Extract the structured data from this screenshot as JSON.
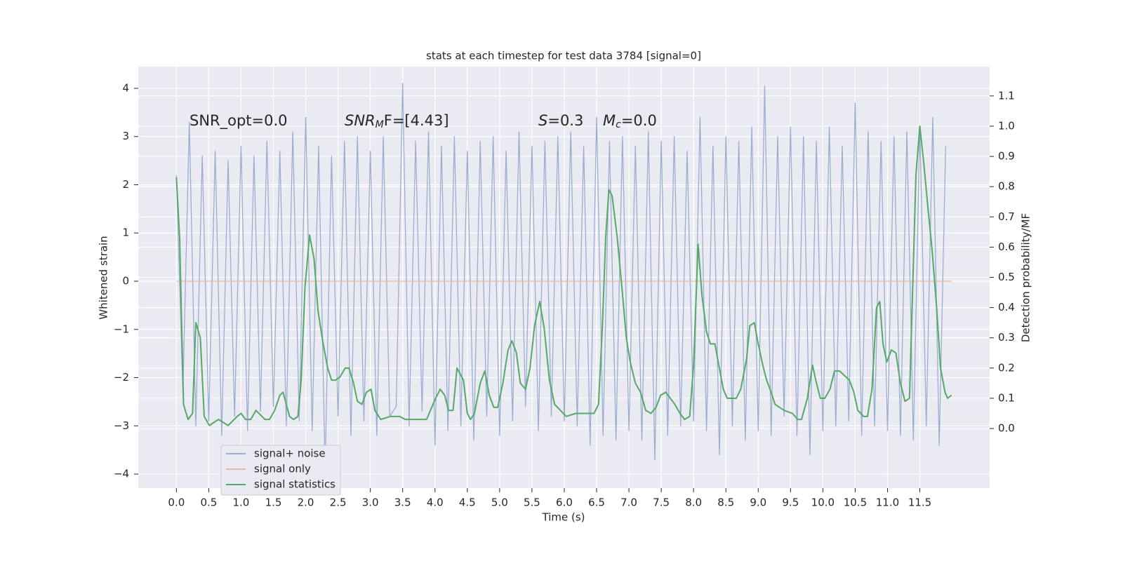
{
  "chart_data": {
    "type": "line",
    "title": "stats at each timestep for test data 3784 [signal=0]",
    "x_label": "Time (s)",
    "y_label": "Whitened strain",
    "y2_label": "Detection probability/MF",
    "annotations": [
      {
        "base": "SNR_opt=0.0"
      },
      {
        "base": "SNR",
        "sub": "M",
        "rest": "F=[4.43]"
      },
      {
        "base": "S",
        "rest": "=0.3"
      },
      {
        "base": "M",
        "sub": "c",
        "rest": "=0.0"
      }
    ],
    "grid": true,
    "background": "#eaeaf2",
    "legend": "lower left",
    "xlim": [
      -0.59,
      12.58
    ],
    "ylim": [
      -4.29,
      4.45
    ],
    "y2lim": [
      -0.197,
      1.197
    ],
    "xticks": [
      {
        "value": 0,
        "label": "0.0"
      },
      0.5,
      {
        "value": 1,
        "label": "1.0"
      },
      1.5,
      {
        "value": 2,
        "label": "2.0"
      },
      2.5,
      {
        "value": 3,
        "label": "3.0"
      },
      3.5,
      {
        "value": 4,
        "label": "4.0"
      },
      4.5,
      {
        "value": 5,
        "label": "5.0"
      },
      5.5,
      {
        "value": 6,
        "label": "6.0"
      },
      6.5,
      {
        "value": 7,
        "label": "7.0"
      },
      7.5,
      {
        "value": 8,
        "label": "8.0"
      },
      8.5,
      {
        "value": 9,
        "label": "9.0"
      },
      9.5,
      {
        "value": 10,
        "label": "10.0"
      },
      10.5,
      {
        "value": 11,
        "label": "11.0"
      },
      11.5
    ],
    "yticks": [
      {
        "value": -4,
        "label": "−4"
      },
      {
        "value": -3,
        "label": "−3"
      },
      {
        "value": -2,
        "label": "−2"
      },
      {
        "value": -1,
        "label": "−1"
      },
      0,
      1,
      2,
      3,
      4
    ],
    "y2ticks": [
      {
        "value": 0,
        "label": "0.0"
      },
      0.1,
      0.2,
      0.3,
      0.4,
      0.5,
      0.6,
      0.7,
      0.8,
      0.9,
      {
        "value": 1,
        "label": "1.0"
      },
      1.1
    ],
    "series": [
      {
        "name": "signal+ noise",
        "color": "#9badd2",
        "x": [
          0.0,
          0.1,
          0.2,
          0.3,
          0.4,
          0.5,
          0.6,
          0.7,
          0.8,
          0.9,
          1.0,
          1.1,
          1.2,
          1.3,
          1.4,
          1.5,
          1.6,
          1.7,
          1.8,
          1.9,
          2.0,
          2.1,
          2.2,
          2.3,
          2.4,
          2.5,
          2.6,
          2.7,
          2.8,
          2.9,
          3.0,
          3.1,
          3.2,
          3.3,
          3.4,
          3.5,
          3.6,
          3.7,
          3.8,
          3.9,
          4.0,
          4.1,
          4.2,
          4.3,
          4.4,
          4.5,
          4.6,
          4.7,
          4.8,
          4.9,
          5.0,
          5.1,
          5.2,
          5.3,
          5.4,
          5.5,
          5.6,
          5.7,
          5.8,
          5.9,
          6.0,
          6.1,
          6.2,
          6.3,
          6.4,
          6.5,
          6.6,
          6.7,
          6.8,
          6.9,
          7.0,
          7.1,
          7.2,
          7.3,
          7.4,
          7.5,
          7.6,
          7.7,
          7.8,
          7.9,
          8.0,
          8.1,
          8.2,
          8.3,
          8.4,
          8.5,
          8.6,
          8.7,
          8.8,
          8.9,
          9.0,
          9.1,
          9.2,
          9.3,
          9.4,
          9.5,
          9.6,
          9.7,
          9.8,
          9.9,
          10.0,
          10.1,
          10.2,
          10.3,
          10.4,
          10.5,
          10.6,
          10.7,
          10.8,
          10.9,
          11.0,
          11.1,
          11.2,
          11.3,
          11.4,
          11.5,
          11.6,
          11.7,
          11.8,
          11.9
        ],
        "values": [
          2.2,
          -2.3,
          3.3,
          -3.0,
          2.6,
          -2.9,
          2.7,
          -3.2,
          2.5,
          -2.8,
          2.8,
          -3.1,
          2.6,
          -2.7,
          2.9,
          -2.6,
          2.7,
          -3.0,
          3.1,
          -2.9,
          3.4,
          -3.1,
          2.8,
          -3.9,
          2.6,
          -2.8,
          2.9,
          -3.2,
          3.0,
          -2.9,
          2.7,
          -3.2,
          3.0,
          -2.8,
          -2.6,
          4.1,
          -3.0,
          2.9,
          -2.7,
          3.1,
          -3.4,
          2.8,
          -3.1,
          3.0,
          -3.0,
          2.7,
          -3.3,
          2.9,
          -2.8,
          3.0,
          -3.2,
          2.7,
          -2.9,
          3.1,
          -2.6,
          2.8,
          -3.1,
          2.9,
          -2.8,
          3.0,
          -2.9,
          3.1,
          -3.0,
          2.8,
          -3.4,
          3.4,
          -3.2,
          2.9,
          -3.3,
          3.0,
          -3.1,
          2.8,
          -3.3,
          3.1,
          -3.7,
          2.9,
          -3.2,
          3.0,
          -3.0,
          2.7,
          -2.9,
          3.4,
          -3.1,
          2.8,
          -3.6,
          3.0,
          -3.0,
          2.9,
          -3.3,
          3.2,
          -3.1,
          4.05,
          -3.2,
          3.0,
          -2.8,
          3.2,
          -3.2,
          3.0,
          -3.6,
          2.9,
          -3.1,
          3.2,
          -3.0,
          2.8,
          -2.9,
          3.7,
          -3.2,
          3.1,
          -3.0,
          2.9,
          -3.1,
          3.0,
          -3.2,
          3.1,
          -3.3,
          3.2,
          -3.0,
          3.4,
          -3.4,
          2.8
        ]
      },
      {
        "name": "signal only",
        "color": "#e4b8a1",
        "x": [
          0,
          11.99
        ],
        "values": [
          0,
          0
        ]
      },
      {
        "name": "signal statistics",
        "color": "#55a868",
        "axis": "y2",
        "x": [
          0,
          0.05,
          0.11,
          0.18,
          0.25,
          0.3,
          0.37,
          0.43,
          0.51,
          0.65,
          0.8,
          0.94,
          1.0,
          1.07,
          1.15,
          1.23,
          1.37,
          1.44,
          1.52,
          1.6,
          1.65,
          1.75,
          1.81,
          1.88,
          1.93,
          1.99,
          2.06,
          2.13,
          2.19,
          2.27,
          2.34,
          2.4,
          2.46,
          2.53,
          2.61,
          2.67,
          2.74,
          2.8,
          2.87,
          2.94,
          3.01,
          3.07,
          3.16,
          3.31,
          3.45,
          3.54,
          3.79,
          3.87,
          3.93,
          4.01,
          4.08,
          4.15,
          4.21,
          4.28,
          4.34,
          4.44,
          4.5,
          4.55,
          4.61,
          4.7,
          4.77,
          4.84,
          4.91,
          4.97,
          5.05,
          5.13,
          5.19,
          5.26,
          5.32,
          5.4,
          5.47,
          5.54,
          5.62,
          5.69,
          5.77,
          5.85,
          6.03,
          6.18,
          6.33,
          6.46,
          6.53,
          6.59,
          6.64,
          6.69,
          6.74,
          6.82,
          6.89,
          6.96,
          7.02,
          7.1,
          7.18,
          7.26,
          7.34,
          7.42,
          7.49,
          7.57,
          7.71,
          7.79,
          7.86,
          7.94,
          8.0,
          8.07,
          8.13,
          8.2,
          8.26,
          8.33,
          8.39,
          8.46,
          8.52,
          8.66,
          8.73,
          8.82,
          8.87,
          8.94,
          9.0,
          9.07,
          9.13,
          9.2,
          9.26,
          9.4,
          9.53,
          9.61,
          9.67,
          9.76,
          9.84,
          9.89,
          9.96,
          10.03,
          10.11,
          10.18,
          10.26,
          10.41,
          10.48,
          10.54,
          10.63,
          10.69,
          10.76,
          10.83,
          10.88,
          10.93,
          10.99,
          11.06,
          11.13,
          11.2,
          11.27,
          11.34,
          11.39,
          11.44,
          11.5,
          11.56,
          11.63,
          11.69,
          11.76,
          11.82,
          11.89,
          11.93,
          11.99
        ],
        "values": [
          0.83,
          0.63,
          0.08,
          0.03,
          0.05,
          0.35,
          0.3,
          0.04,
          0.01,
          0.03,
          0.01,
          0.04,
          0.05,
          0.03,
          0.03,
          0.06,
          0.03,
          0.03,
          0.06,
          0.11,
          0.12,
          0.04,
          0.03,
          0.04,
          0.16,
          0.47,
          0.64,
          0.56,
          0.39,
          0.28,
          0.2,
          0.16,
          0.16,
          0.17,
          0.2,
          0.2,
          0.15,
          0.09,
          0.08,
          0.12,
          0.13,
          0.06,
          0.03,
          0.04,
          0.04,
          0.03,
          0.03,
          0.03,
          0.06,
          0.1,
          0.13,
          0.11,
          0.06,
          0.06,
          0.2,
          0.16,
          0.05,
          0.03,
          0.05,
          0.15,
          0.19,
          0.11,
          0.07,
          0.07,
          0.15,
          0.26,
          0.29,
          0.25,
          0.15,
          0.13,
          0.2,
          0.34,
          0.42,
          0.33,
          0.16,
          0.08,
          0.04,
          0.05,
          0.05,
          0.05,
          0.08,
          0.34,
          0.63,
          0.79,
          0.77,
          0.63,
          0.47,
          0.3,
          0.22,
          0.15,
          0.12,
          0.06,
          0.05,
          0.07,
          0.11,
          0.12,
          0.08,
          0.05,
          0.03,
          0.04,
          0.21,
          0.61,
          0.44,
          0.32,
          0.28,
          0.28,
          0.21,
          0.13,
          0.1,
          0.1,
          0.13,
          0.23,
          0.34,
          0.35,
          0.28,
          0.21,
          0.16,
          0.12,
          0.08,
          0.06,
          0.05,
          0.03,
          0.03,
          0.1,
          0.21,
          0.16,
          0.1,
          0.1,
          0.13,
          0.19,
          0.19,
          0.16,
          0.12,
          0.06,
          0.04,
          0.04,
          0.13,
          0.4,
          0.42,
          0.28,
          0.22,
          0.26,
          0.25,
          0.15,
          0.09,
          0.1,
          0.47,
          0.84,
          1.0,
          0.88,
          0.72,
          0.59,
          0.4,
          0.2,
          0.12,
          0.1,
          0.11
        ]
      }
    ]
  }
}
